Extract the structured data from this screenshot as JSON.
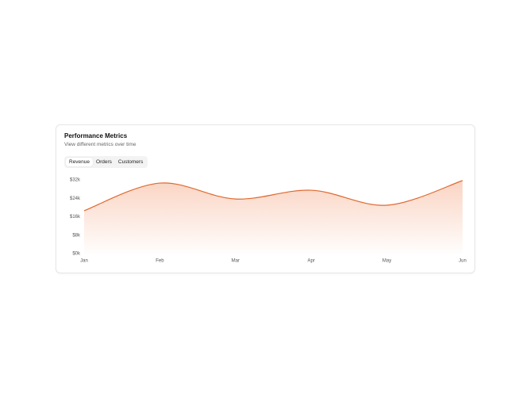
{
  "chart_data": {
    "type": "area",
    "title": "Performance Metrics",
    "subtitle": "View different metrics over time",
    "tabs": [
      "Revenue",
      "Orders",
      "Customers"
    ],
    "active_tab": 0,
    "categories": [
      "Jan",
      "Feb",
      "Mar",
      "Apr",
      "May",
      "Jun"
    ],
    "series": [
      {
        "name": "Revenue",
        "color": "#e0692e",
        "values": [
          18600,
          30600,
          23700,
          27500,
          21000,
          31700
        ]
      }
    ],
    "ylim": [
      0,
      32000
    ],
    "yticks": [
      {
        "value": 0,
        "label": "$0k"
      },
      {
        "value": 8000,
        "label": "$8k"
      },
      {
        "value": 16000,
        "label": "$16k"
      },
      {
        "value": 24000,
        "label": "$24k"
      },
      {
        "value": 32000,
        "label": "$32k"
      }
    ]
  }
}
